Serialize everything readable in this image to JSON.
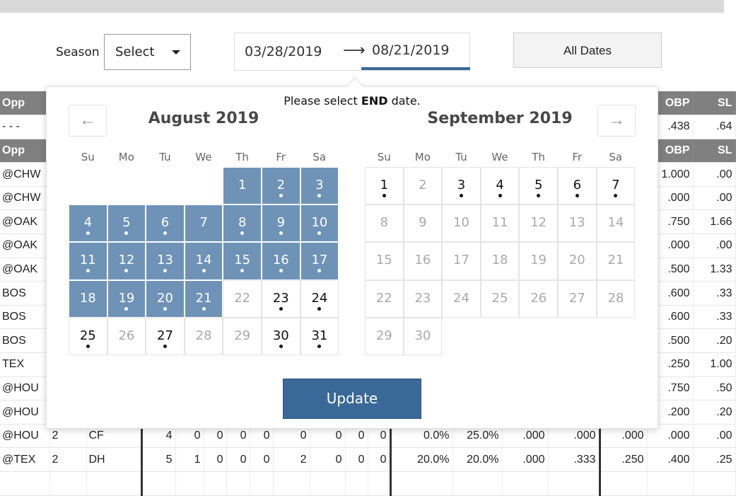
{
  "filters": {
    "season_label": "Season",
    "season_select": "Select",
    "start_date": "03/28/2019",
    "end_date": "08/21/2019",
    "all_dates_label": "All Dates"
  },
  "calendar": {
    "prompt_pre": "Please select ",
    "prompt_bold": "END",
    "prompt_post": " date.",
    "prev_icon": "←",
    "next_icon": "→",
    "weekdays": [
      "Su",
      "Mo",
      "Tu",
      "We",
      "Th",
      "Fr",
      "Sa"
    ],
    "accent_color": "#6f93b7",
    "update_label": "Update",
    "months": [
      {
        "title": "August 2019",
        "first_weekday": 4,
        "days": 31,
        "selected_from": 1,
        "selected_to": 21,
        "dots": [
          2,
          3,
          4,
          5,
          6,
          8,
          9,
          10,
          11,
          12,
          13,
          14,
          15,
          16,
          17,
          19,
          20,
          21,
          23,
          24,
          25,
          27,
          30,
          31
        ],
        "disabled": [
          22,
          26,
          28,
          29
        ]
      },
      {
        "title": "September 2019",
        "first_weekday": 0,
        "days": 30,
        "selected_from": 0,
        "selected_to": 0,
        "dots": [
          1,
          3,
          4,
          5,
          6,
          7
        ],
        "disabled": [
          2,
          8,
          9,
          10,
          11,
          12,
          13,
          14,
          15,
          16,
          17,
          18,
          19,
          20,
          21,
          22,
          23,
          24,
          25,
          26,
          27,
          28,
          29,
          30
        ]
      }
    ]
  },
  "table": {
    "header": {
      "opp": "Opp",
      "obp": "OBP",
      "slg": "SL"
    },
    "summary_row": {
      "opp": "- - -",
      "obp": ".438",
      "slg": ".64"
    },
    "rows": [
      {
        "opp": "@CHW",
        "obp": "1.000",
        "slg": ".00"
      },
      {
        "opp": "@CHW",
        "obp": ".000",
        "slg": ".00"
      },
      {
        "opp": "@OAK",
        "obp": ".750",
        "slg": "1.66"
      },
      {
        "opp": "@OAK",
        "obp": ".000",
        "slg": ".00"
      },
      {
        "opp": "@OAK",
        "obp": ".500",
        "slg": "1.33"
      },
      {
        "opp": "BOS",
        "obp": ".600",
        "slg": ".33"
      },
      {
        "opp": "BOS",
        "obp": ".600",
        "slg": ".33"
      },
      {
        "opp": "BOS",
        "obp": ".500",
        "slg": ".20"
      },
      {
        "opp": "TEX",
        "obp": ".250",
        "slg": "1.00"
      },
      {
        "opp": "@HOU",
        "obp": ".750",
        "slg": ".50"
      },
      {
        "opp": "@HOU",
        "obp": ".200",
        "slg": ".20"
      },
      {
        "opp": "@HOU",
        "g": "2",
        "pos": "CF",
        "stats": [
          "4",
          "0",
          "0",
          "0",
          "0",
          "0",
          "0",
          "0",
          "0"
        ],
        "rates": [
          "0.0%",
          "25.0%",
          ".000",
          ".000"
        ],
        "avg": ".000",
        "obp": ".000",
        "slg": ".00"
      },
      {
        "opp": "@TEX",
        "g": "2",
        "pos": "DH",
        "stats": [
          "5",
          "1",
          "0",
          "0",
          "0",
          "2",
          "0",
          "0",
          "0"
        ],
        "rates": [
          "20.0%",
          "20.0%",
          ".000",
          ".333"
        ],
        "avg": ".250",
        "obp": ".400",
        "slg": ".25"
      }
    ]
  }
}
